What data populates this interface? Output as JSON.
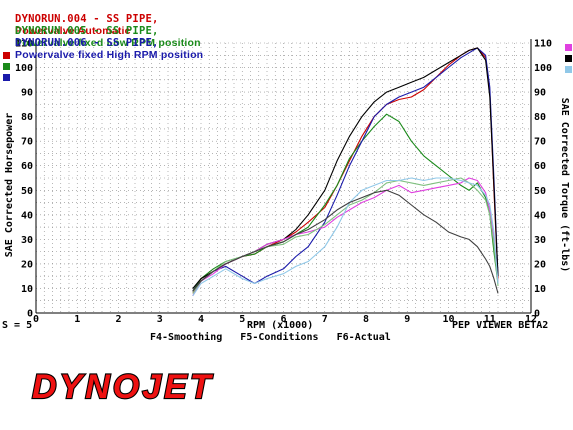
{
  "legend": [
    {
      "run": "DYNORUN.004 - SS PIPE,",
      "desc": "Powervalve Automatic",
      "color": "#cc0000"
    },
    {
      "run": "DYNORUN.005 - SS PIPE,",
      "desc": "Powervalve fixed Low RPM position",
      "color": "#1a8a1a"
    },
    {
      "run": "DYNORUN.006 - SS PIPE,",
      "desc": "Powervalve fixed High RPM position",
      "color": "#1a1aaa"
    }
  ],
  "left_axis_label": "SAE Corrected Horsepower",
  "right_axis_label": "SAE Corrected Torque (ft-lbs)",
  "x_axis_label": "RPM (x1000)",
  "smoothing_label": "S = 5",
  "viewer_label": "PEP VIEWER BETA2",
  "function_keys": "F4-Smoothing   F5-Conditions   F6-Actual",
  "logo_text": "DYNOJET",
  "colors": {
    "run004": "#cc0000",
    "run005": "#1a8a1a",
    "run006": "#1a1aaa",
    "run004_torque": "#e040e0",
    "run005_torque": "#80c080",
    "run006_torque": "#90c8e8",
    "hp_black": "#000000",
    "torque_black": "#404040",
    "logo_red": "#ee1111"
  },
  "chart_data": {
    "type": "line",
    "xlim": [
      0,
      12
    ],
    "ylim": [
      0,
      110
    ],
    "x_ticks": [
      "0",
      "1",
      "2",
      "3",
      "4",
      "5",
      "6",
      "7",
      "8",
      "9",
      "10",
      "11",
      "12"
    ],
    "y_ticks": [
      "0",
      "10",
      "20",
      "30",
      "40",
      "50",
      "60",
      "70",
      "80",
      "90",
      "100",
      "110"
    ],
    "y2_ticks": [
      "0",
      "10",
      "20",
      "30",
      "40",
      "50",
      "60",
      "70",
      "80",
      "90",
      "100",
      "110"
    ],
    "grid": true,
    "series": [
      {
        "key": "run004_hp",
        "color_key": "run004",
        "x": [
          3.8,
          4.0,
          4.3,
          4.6,
          5.0,
          5.3,
          5.6,
          6.0,
          6.3,
          6.6,
          7.0,
          7.3,
          7.6,
          7.9,
          8.2,
          8.5,
          8.8,
          9.1,
          9.4,
          9.7,
          10.0,
          10.3,
          10.5,
          10.7,
          10.9,
          11.0,
          11.1,
          11.2
        ],
        "y": [
          8,
          14,
          17,
          20,
          23,
          24,
          27,
          30,
          33,
          37,
          43,
          52,
          62,
          72,
          80,
          85,
          87,
          88,
          91,
          96,
          101,
          105,
          107,
          108,
          104,
          90,
          50,
          14
        ]
      },
      {
        "key": "run005_hp",
        "color_key": "run005",
        "x": [
          3.8,
          4.0,
          4.3,
          4.6,
          5.0,
          5.3,
          5.6,
          6.0,
          6.3,
          6.6,
          7.0,
          7.3,
          7.6,
          7.9,
          8.2,
          8.5,
          8.8,
          9.1,
          9.4,
          9.7,
          10.0,
          10.3,
          10.5,
          10.7,
          10.9,
          11.0,
          11.1,
          11.2
        ],
        "y": [
          9,
          14,
          18,
          21,
          23,
          24,
          27,
          29,
          32,
          35,
          44,
          52,
          63,
          70,
          76,
          81,
          78,
          70,
          64,
          60,
          56,
          52,
          50,
          53,
          47,
          40,
          25,
          12
        ]
      },
      {
        "key": "run006_hp",
        "color_key": "run006",
        "x": [
          3.8,
          4.0,
          4.3,
          4.6,
          5.0,
          5.3,
          5.6,
          6.0,
          6.3,
          6.6,
          7.0,
          7.3,
          7.6,
          7.9,
          8.2,
          8.5,
          8.8,
          9.1,
          9.4,
          9.7,
          10.0,
          10.3,
          10.5,
          10.7,
          10.9,
          11.0,
          11.1,
          11.2
        ],
        "y": [
          9,
          13,
          17,
          19,
          15,
          12,
          15,
          18,
          23,
          27,
          37,
          48,
          60,
          70,
          80,
          85,
          88,
          90,
          92,
          96,
          100,
          104,
          106,
          108,
          105,
          92,
          55,
          15
        ]
      },
      {
        "key": "black_hp",
        "color_key": "hp_black",
        "x": [
          3.8,
          4.0,
          4.3,
          4.6,
          5.0,
          5.3,
          5.6,
          6.0,
          6.3,
          6.6,
          7.0,
          7.3,
          7.6,
          7.9,
          8.2,
          8.5,
          8.8,
          9.1,
          9.4,
          9.7,
          10.0,
          10.3,
          10.5,
          10.7,
          10.9,
          11.0,
          11.1,
          11.2
        ],
        "y": [
          10,
          14,
          17,
          20,
          23,
          25,
          28,
          30,
          34,
          40,
          50,
          62,
          72,
          80,
          86,
          90,
          92,
          94,
          96,
          99,
          102,
          105,
          107,
          108,
          103,
          88,
          52,
          15
        ]
      },
      {
        "key": "run004_tq",
        "color_key": "run004_torque",
        "x": [
          3.8,
          4.0,
          4.3,
          4.6,
          5.0,
          5.3,
          5.6,
          6.0,
          6.3,
          6.6,
          7.0,
          7.3,
          7.6,
          7.9,
          8.2,
          8.5,
          8.8,
          9.1,
          9.4,
          9.7,
          10.0,
          10.3,
          10.5,
          10.7,
          10.9,
          11.0,
          11.1,
          11.2
        ],
        "y": [
          7,
          13,
          16,
          20,
          23,
          25,
          28,
          30,
          32,
          33,
          35,
          39,
          42,
          45,
          47,
          50,
          52,
          49,
          50,
          51,
          52,
          53,
          55,
          54,
          49,
          42,
          30,
          12
        ]
      },
      {
        "key": "run005_tq",
        "color_key": "run005_torque",
        "x": [
          3.8,
          4.0,
          4.3,
          4.6,
          5.0,
          5.3,
          5.6,
          6.0,
          6.3,
          6.6,
          7.0,
          7.3,
          7.6,
          7.9,
          8.2,
          8.5,
          8.8,
          9.1,
          9.4,
          9.7,
          10.0,
          10.3,
          10.5,
          10.7,
          10.9,
          11.0,
          11.1,
          11.2
        ],
        "y": [
          8,
          13,
          17,
          21,
          23,
          25,
          27,
          28,
          31,
          32,
          36,
          40,
          44,
          46,
          49,
          53,
          54,
          53,
          52,
          53,
          54,
          55,
          53,
          50,
          46,
          40,
          28,
          11
        ]
      },
      {
        "key": "run006_tq",
        "color_key": "run006_torque",
        "x": [
          3.8,
          4.0,
          4.3,
          4.6,
          5.0,
          5.3,
          5.6,
          6.0,
          6.3,
          6.6,
          7.0,
          7.3,
          7.6,
          7.9,
          8.2,
          8.5,
          8.8,
          9.1,
          9.4,
          9.7,
          10.0,
          10.3,
          10.5,
          10.7,
          10.9,
          11.0,
          11.1,
          11.2
        ],
        "y": [
          7,
          12,
          15,
          18,
          14,
          12,
          14,
          16,
          19,
          21,
          27,
          35,
          45,
          50,
          52,
          54,
          54,
          55,
          54,
          55,
          55,
          54,
          53,
          52,
          48,
          44,
          33,
          12
        ]
      },
      {
        "key": "black_tq",
        "color_key": "torque_black",
        "x": [
          3.8,
          4.0,
          4.3,
          4.6,
          5.0,
          5.3,
          5.6,
          6.0,
          6.3,
          6.6,
          7.0,
          7.3,
          7.6,
          7.9,
          8.2,
          8.5,
          8.8,
          9.1,
          9.4,
          9.7,
          10.0,
          10.3,
          10.5,
          10.7,
          10.9,
          11.0,
          11.1,
          11.2
        ],
        "y": [
          9,
          13,
          17,
          20,
          23,
          25,
          27,
          29,
          32,
          34,
          38,
          42,
          45,
          47,
          49,
          50,
          48,
          44,
          40,
          37,
          33,
          31,
          30,
          27,
          22,
          19,
          14,
          8
        ]
      }
    ]
  }
}
